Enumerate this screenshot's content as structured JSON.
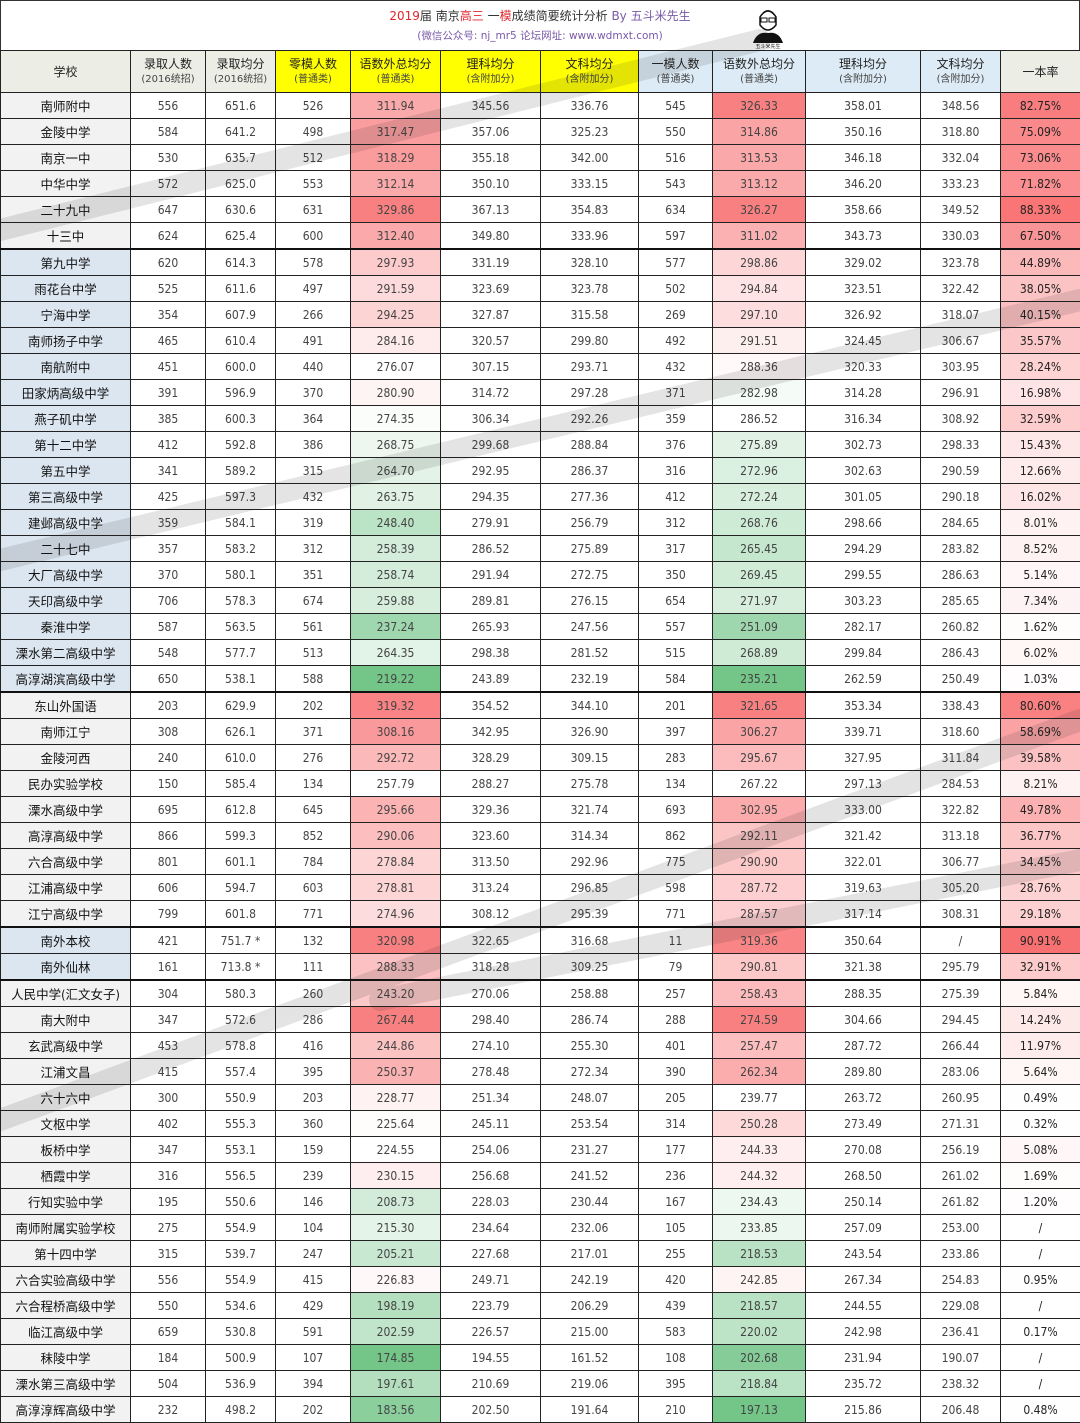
{
  "title": {
    "year": "2019",
    "part1": "届 南京",
    "part2": "高三",
    "part3": " 一",
    "part4": "模",
    "part5": "成绩简要统计分析",
    "by": "By 五斗米先生"
  },
  "subtitle": "(微信公众号: nj_mr5  论坛网址: www.wdmxt.com)",
  "logo_text": "五斗米先生",
  "watermark_text": "五斗米先生",
  "colors": {
    "red": "#f8696b",
    "green": "#63be7b",
    "yellow_header": "#ffff00",
    "blue_header": "#dcebf5",
    "blue_group": "#dce6f1",
    "gray_group": "#f2f2f2"
  },
  "headers": [
    {
      "label": "学校",
      "sub": ""
    },
    {
      "label": "录取人数",
      "sub": "(2016统招)"
    },
    {
      "label": "录取均分",
      "sub": "(2016统招)"
    },
    {
      "label": "零模人数",
      "sub": "(普通类)"
    },
    {
      "label": "语数外总均分",
      "sub": "(普通类)"
    },
    {
      "label": "理科均分",
      "sub": "(含附加分)"
    },
    {
      "label": "文科均分",
      "sub": "(含附加分)"
    },
    {
      "label": "一模人数",
      "sub": "(普通类)"
    },
    {
      "label": "语数外总均分",
      "sub": "(普通类)"
    },
    {
      "label": "理科均分",
      "sub": "(含附加分)"
    },
    {
      "label": "文科均分",
      "sub": "(含附加分)"
    },
    {
      "label": "一本率",
      "sub": ""
    }
  ],
  "rows": [
    [
      "南师附中",
      "556",
      "651.6",
      "526",
      "311.94",
      "345.56",
      "336.76",
      "545",
      "326.33",
      "358.01",
      "348.56",
      "82.75%"
    ],
    [
      "金陵中学",
      "584",
      "641.2",
      "498",
      "317.47",
      "357.06",
      "325.23",
      "550",
      "314.86",
      "350.16",
      "318.80",
      "75.09%"
    ],
    [
      "南京一中",
      "530",
      "635.7",
      "512",
      "318.29",
      "355.18",
      "342.00",
      "516",
      "313.53",
      "346.18",
      "332.04",
      "73.06%"
    ],
    [
      "中华中学",
      "572",
      "625.0",
      "553",
      "312.14",
      "350.10",
      "333.15",
      "543",
      "313.12",
      "346.20",
      "333.23",
      "71.82%"
    ],
    [
      "二十九中",
      "647",
      "630.6",
      "631",
      "329.86",
      "367.13",
      "354.83",
      "634",
      "326.27",
      "358.66",
      "349.52",
      "88.33%"
    ],
    [
      "十三中",
      "624",
      "625.4",
      "600",
      "312.40",
      "349.80",
      "333.96",
      "597",
      "311.02",
      "343.73",
      "330.03",
      "67.50%"
    ],
    [
      "第九中学",
      "620",
      "614.3",
      "578",
      "297.93",
      "331.19",
      "328.10",
      "577",
      "298.86",
      "329.02",
      "323.78",
      "44.89%"
    ],
    [
      "雨花台中学",
      "525",
      "611.6",
      "497",
      "291.59",
      "323.69",
      "323.78",
      "502",
      "294.84",
      "323.51",
      "322.42",
      "38.05%"
    ],
    [
      "宁海中学",
      "354",
      "607.9",
      "266",
      "294.25",
      "327.87",
      "315.58",
      "269",
      "297.10",
      "326.92",
      "318.07",
      "40.15%"
    ],
    [
      "南师扬子中学",
      "465",
      "610.4",
      "491",
      "284.16",
      "320.57",
      "299.80",
      "492",
      "291.51",
      "324.45",
      "306.67",
      "35.57%"
    ],
    [
      "南航附中",
      "451",
      "600.0",
      "440",
      "276.07",
      "307.15",
      "293.71",
      "432",
      "288.36",
      "320.33",
      "303.95",
      "28.24%"
    ],
    [
      "田家炳高级中学",
      "391",
      "596.9",
      "370",
      "280.90",
      "314.72",
      "297.28",
      "371",
      "282.98",
      "314.28",
      "296.91",
      "16.98%"
    ],
    [
      "燕子矶中学",
      "385",
      "600.3",
      "364",
      "274.35",
      "306.34",
      "292.26",
      "359",
      "286.52",
      "316.34",
      "308.92",
      "32.59%"
    ],
    [
      "第十二中学",
      "412",
      "592.8",
      "386",
      "268.75",
      "299.68",
      "288.84",
      "376",
      "275.89",
      "302.73",
      "298.33",
      "15.43%"
    ],
    [
      "第五中学",
      "341",
      "589.2",
      "315",
      "264.70",
      "292.95",
      "286.37",
      "316",
      "272.96",
      "302.63",
      "290.59",
      "12.66%"
    ],
    [
      "第三高级中学",
      "425",
      "597.3",
      "432",
      "263.75",
      "294.35",
      "277.36",
      "412",
      "272.24",
      "301.05",
      "290.18",
      "16.02%"
    ],
    [
      "建邺高级中学",
      "359",
      "584.1",
      "319",
      "248.40",
      "279.91",
      "256.79",
      "312",
      "268.76",
      "298.66",
      "284.65",
      "8.01%"
    ],
    [
      "二十七中",
      "357",
      "583.2",
      "312",
      "258.39",
      "286.52",
      "275.89",
      "317",
      "265.45",
      "294.29",
      "283.82",
      "8.52%"
    ],
    [
      "大厂高级中学",
      "370",
      "580.1",
      "351",
      "258.74",
      "291.94",
      "272.75",
      "350",
      "269.45",
      "299.55",
      "286.63",
      "5.14%"
    ],
    [
      "天印高级中学",
      "706",
      "578.3",
      "674",
      "259.88",
      "289.81",
      "276.15",
      "654",
      "271.97",
      "303.23",
      "285.65",
      "7.34%"
    ],
    [
      "秦淮中学",
      "587",
      "563.5",
      "561",
      "237.24",
      "265.93",
      "247.56",
      "557",
      "251.09",
      "282.17",
      "260.82",
      "1.62%"
    ],
    [
      "溧水第二高级中学",
      "548",
      "577.7",
      "513",
      "264.35",
      "298.38",
      "281.52",
      "515",
      "268.89",
      "299.84",
      "286.43",
      "6.02%"
    ],
    [
      "高淳湖滨高级中学",
      "650",
      "538.1",
      "588",
      "219.22",
      "243.89",
      "232.19",
      "584",
      "235.21",
      "262.59",
      "250.49",
      "1.03%"
    ],
    [
      "东山外国语",
      "203",
      "629.9",
      "202",
      "319.32",
      "354.52",
      "344.10",
      "201",
      "321.65",
      "353.34",
      "338.43",
      "80.60%"
    ],
    [
      "南师江宁",
      "308",
      "626.1",
      "371",
      "308.16",
      "342.95",
      "326.90",
      "397",
      "306.27",
      "339.71",
      "318.60",
      "58.69%"
    ],
    [
      "金陵河西",
      "240",
      "610.0",
      "276",
      "292.72",
      "328.29",
      "309.15",
      "283",
      "295.67",
      "327.95",
      "311.84",
      "39.58%"
    ],
    [
      "民办实验学校",
      "150",
      "585.4",
      "134",
      "257.79",
      "288.27",
      "275.78",
      "134",
      "267.22",
      "297.13",
      "284.53",
      "8.21%"
    ],
    [
      "溧水高级中学",
      "695",
      "612.8",
      "645",
      "295.66",
      "329.36",
      "321.74",
      "693",
      "302.95",
      "333.00",
      "322.82",
      "49.78%"
    ],
    [
      "高淳高级中学",
      "866",
      "599.3",
      "852",
      "290.06",
      "323.60",
      "314.34",
      "862",
      "292.11",
      "321.42",
      "313.18",
      "36.77%"
    ],
    [
      "六合高级中学",
      "801",
      "601.1",
      "784",
      "278.84",
      "313.50",
      "292.96",
      "775",
      "290.90",
      "322.01",
      "306.77",
      "34.45%"
    ],
    [
      "江浦高级中学",
      "606",
      "594.7",
      "603",
      "278.81",
      "313.24",
      "296.85",
      "598",
      "287.72",
      "319.63",
      "305.20",
      "28.76%"
    ],
    [
      "江宁高级中学",
      "799",
      "601.8",
      "771",
      "274.96",
      "308.12",
      "295.39",
      "771",
      "287.57",
      "317.14",
      "308.31",
      "29.18%"
    ],
    [
      "南外本校",
      "421",
      "751.7 *",
      "132",
      "320.98",
      "322.65",
      "316.68",
      "11",
      "319.36",
      "350.64",
      "/",
      "90.91%"
    ],
    [
      "南外仙林",
      "161",
      "713.8 *",
      "111",
      "288.33",
      "318.28",
      "309.25",
      "79",
      "290.81",
      "321.38",
      "295.79",
      "32.91%"
    ],
    [
      "人民中学(汇文女子)",
      "304",
      "580.3",
      "260",
      "243.20",
      "270.06",
      "258.88",
      "257",
      "258.43",
      "288.35",
      "275.39",
      "5.84%"
    ],
    [
      "南大附中",
      "347",
      "572.6",
      "286",
      "267.44",
      "298.40",
      "286.74",
      "288",
      "274.59",
      "304.66",
      "294.45",
      "14.24%"
    ],
    [
      "玄武高级中学",
      "453",
      "578.8",
      "416",
      "244.86",
      "274.10",
      "255.30",
      "401",
      "257.47",
      "287.72",
      "266.44",
      "11.97%"
    ],
    [
      "江浦文昌",
      "415",
      "557.4",
      "395",
      "250.37",
      "278.48",
      "272.34",
      "390",
      "262.34",
      "289.80",
      "283.06",
      "5.64%"
    ],
    [
      "六十六中",
      "300",
      "550.9",
      "203",
      "228.77",
      "251.34",
      "248.07",
      "205",
      "239.77",
      "263.72",
      "260.95",
      "0.49%"
    ],
    [
      "文枢中学",
      "402",
      "555.3",
      "360",
      "225.64",
      "245.11",
      "253.54",
      "314",
      "250.28",
      "273.49",
      "271.31",
      "0.32%"
    ],
    [
      "板桥中学",
      "347",
      "553.1",
      "159",
      "224.55",
      "254.06",
      "231.27",
      "177",
      "244.33",
      "270.08",
      "256.19",
      "5.08%"
    ],
    [
      "栖霞中学",
      "316",
      "556.5",
      "239",
      "230.15",
      "256.68",
      "241.52",
      "236",
      "244.32",
      "268.50",
      "261.02",
      "1.69%"
    ],
    [
      "行知实验中学",
      "195",
      "550.6",
      "146",
      "208.73",
      "228.03",
      "230.44",
      "167",
      "234.43",
      "250.14",
      "261.82",
      "1.20%"
    ],
    [
      "南师附属实验学校",
      "275",
      "554.9",
      "104",
      "215.30",
      "234.64",
      "232.06",
      "105",
      "233.85",
      "257.09",
      "253.00",
      "/"
    ],
    [
      "第十四中学",
      "315",
      "539.7",
      "247",
      "205.21",
      "227.68",
      "217.01",
      "255",
      "218.53",
      "243.54",
      "233.86",
      "/"
    ],
    [
      "六合实验高级中学",
      "556",
      "554.9",
      "415",
      "226.83",
      "249.71",
      "242.19",
      "420",
      "242.85",
      "267.34",
      "254.83",
      "0.95%"
    ],
    [
      "六合程桥高级中学",
      "550",
      "534.6",
      "429",
      "198.19",
      "223.79",
      "206.29",
      "439",
      "218.57",
      "244.55",
      "229.08",
      "/"
    ],
    [
      "临江高级中学",
      "659",
      "530.8",
      "591",
      "202.59",
      "226.57",
      "215.00",
      "583",
      "220.02",
      "242.98",
      "236.41",
      "0.17%"
    ],
    [
      "秣陵中学",
      "184",
      "500.9",
      "107",
      "174.85",
      "194.55",
      "161.52",
      "108",
      "202.68",
      "231.94",
      "190.07",
      "/"
    ],
    [
      "溧水第三高级中学",
      "504",
      "536.9",
      "394",
      "197.61",
      "210.69",
      "219.06",
      "395",
      "218.84",
      "235.72",
      "238.32",
      "/"
    ],
    [
      "高淳淳辉高级中学",
      "232",
      "498.2",
      "202",
      "183.56",
      "202.50",
      "191.64",
      "210",
      "197.13",
      "215.86",
      "206.48",
      "0.48%"
    ]
  ]
}
